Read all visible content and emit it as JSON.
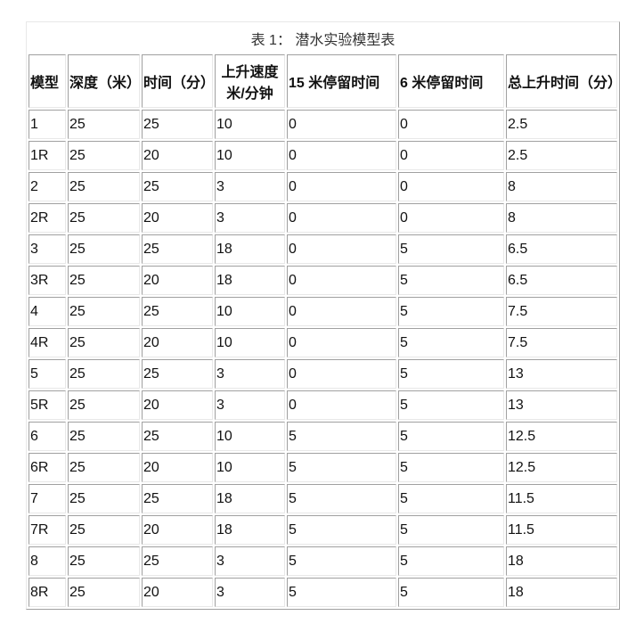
{
  "title": "表 1：   潜水实验模型表",
  "headers": [
    "模型",
    "深度（米）",
    "时间（分）",
    "上升速度米/分钟",
    "15 米停留时间",
    "6 米停留时间",
    "总上升时间（分）"
  ],
  "rows": [
    [
      "1",
      "25",
      "25",
      "10",
      "0",
      "0",
      "2.5"
    ],
    [
      "1R",
      "25",
      "20",
      "10",
      "0",
      "0",
      "2.5"
    ],
    [
      "2",
      "25",
      "25",
      "3",
      "0",
      "0",
      "8"
    ],
    [
      "2R",
      "25",
      "20",
      "3",
      "0",
      "0",
      "8"
    ],
    [
      "3",
      "25",
      "25",
      "18",
      "0",
      "5",
      "6.5"
    ],
    [
      "3R",
      "25",
      "20",
      "18",
      "0",
      "5",
      "6.5"
    ],
    [
      "4",
      "25",
      "25",
      "10",
      "0",
      "5",
      "7.5"
    ],
    [
      "4R",
      "25",
      "20",
      "10",
      "0",
      "5",
      "7.5"
    ],
    [
      "5",
      "25",
      "25",
      "3",
      "0",
      "5",
      "13"
    ],
    [
      "5R",
      "25",
      "20",
      "3",
      "0",
      "5",
      "13"
    ],
    [
      "6",
      "25",
      "25",
      "10",
      "5",
      "5",
      "12.5"
    ],
    [
      "6R",
      "25",
      "20",
      "10",
      "5",
      "5",
      "12.5"
    ],
    [
      "7",
      "25",
      "25",
      "18",
      "5",
      "5",
      "11.5"
    ],
    [
      "7R",
      "25",
      "20",
      "18",
      "5",
      "5",
      "11.5"
    ],
    [
      "8",
      "25",
      "25",
      "3",
      "5",
      "5",
      "18"
    ],
    [
      "8R",
      "25",
      "20",
      "3",
      "5",
      "5",
      "18"
    ]
  ]
}
